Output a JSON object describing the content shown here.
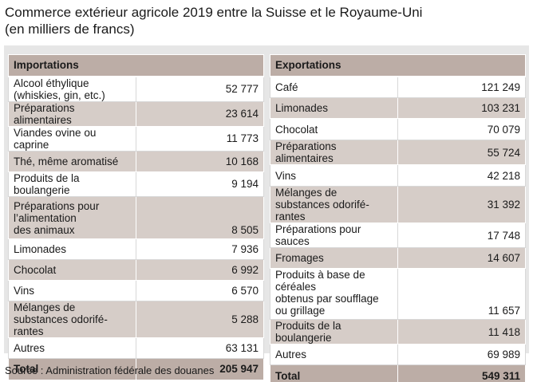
{
  "title": {
    "line1": "Commerce extérieur agricole 2019 entre la Suisse et le Royaume-Uni",
    "line2": "(en milliers de francs)"
  },
  "importations": {
    "header": "Importations",
    "rows": [
      {
        "label": "Alcool éthylique (whiskies, gin, etc.)",
        "value": "52 777"
      },
      {
        "label": "Préparations alimentaires",
        "value": "23 614"
      },
      {
        "label": "Viandes ovine ou caprine",
        "value": "11 773"
      },
      {
        "label": "Thé, même aromatisé",
        "value": "10 168"
      },
      {
        "label": "Produits de la boulangerie",
        "value": "9 194"
      },
      {
        "label_line1": "Préparations pour l’alimentation",
        "label_line2": "des animaux",
        "value": "8 505"
      },
      {
        "label": "Limonades",
        "value": "7 936"
      },
      {
        "label": "Chocolat",
        "value": "6 992"
      },
      {
        "label": "Vins",
        "value": "6 570"
      },
      {
        "label": "Mélanges de substances odorifé-rantes",
        "value": "5 288"
      },
      {
        "label": "Autres",
        "value": "63 131"
      }
    ],
    "total_label": "Total",
    "total_value": "205 947"
  },
  "exportations": {
    "header": "Exportations",
    "rows": [
      {
        "label": "Café",
        "value": "121 249"
      },
      {
        "label": "Limonades",
        "value": "103 231"
      },
      {
        "label": "Chocolat",
        "value": "70 079"
      },
      {
        "label": "Préparations alimentaires",
        "value": "55 724"
      },
      {
        "label": "Vins",
        "value": "42 218"
      },
      {
        "label": "Mélanges de substances odorifé-rantes",
        "value": "31 392"
      },
      {
        "label": "Préparations pour sauces",
        "value": "17 748"
      },
      {
        "label": "Fromages",
        "value": "14 607"
      },
      {
        "label_line1": "Produits à base de céréales",
        "label_line2": "obtenus par soufflage ou grillage",
        "value": "11 657"
      },
      {
        "label": "Produits de la boulangerie",
        "value": "11 418"
      },
      {
        "label": "Autres",
        "value": "69 989"
      }
    ],
    "total_label": "Total",
    "total_value": "549 311"
  },
  "source": "Source : Administration fédérale des douanes",
  "colors": {
    "header_bg": "#bcada6",
    "band_bg": "#d6cdc8",
    "panel_bg": "#e6e6e6"
  }
}
